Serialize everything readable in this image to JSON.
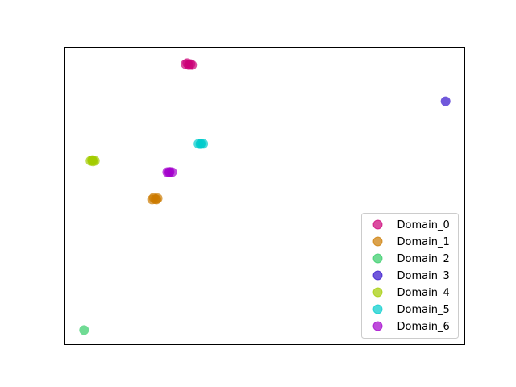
{
  "chart_data": {
    "type": "scatter",
    "xlim": [
      0,
      100
    ],
    "ylim": [
      0,
      100
    ],
    "legend": "lower right",
    "marker_alpha": 0.7,
    "series": [
      {
        "name": "Domain_0",
        "color": "#cc0077",
        "x": [
          30.2,
          31.0,
          31.8,
          30.6,
          31.4
        ],
        "y": [
          94.3,
          94.0,
          94.0,
          94.6,
          94.3
        ]
      },
      {
        "name": "Domain_1",
        "color": "#cc7a00",
        "x": [
          21.8,
          22.6,
          23.2,
          22.2,
          22.9
        ],
        "y": [
          48.8,
          48.9,
          49.2,
          49.4,
          48.8
        ]
      },
      {
        "name": "Domain_2",
        "color": "#33cc66",
        "x": [
          4.8
        ],
        "y": [
          4.9
        ]
      },
      {
        "name": "Domain_3",
        "color": "#3311cc",
        "x": [
          95.2
        ],
        "y": [
          81.8
        ]
      },
      {
        "name": "Domain_4",
        "color": "#a3cc00",
        "x": [
          6.4,
          7.0,
          7.5,
          6.9,
          6.8
        ],
        "y": [
          61.8,
          61.6,
          61.8,
          62.0,
          62.0
        ]
      },
      {
        "name": "Domain_5",
        "color": "#00cccc",
        "x": [
          33.4,
          34.0,
          34.6,
          33.9
        ],
        "y": [
          67.5,
          67.6,
          67.5,
          67.4
        ]
      },
      {
        "name": "Domain_6",
        "color": "#a300cc",
        "x": [
          25.6,
          26.2,
          26.8,
          26.1
        ],
        "y": [
          58.0,
          58.1,
          58.0,
          57.9
        ]
      }
    ]
  }
}
